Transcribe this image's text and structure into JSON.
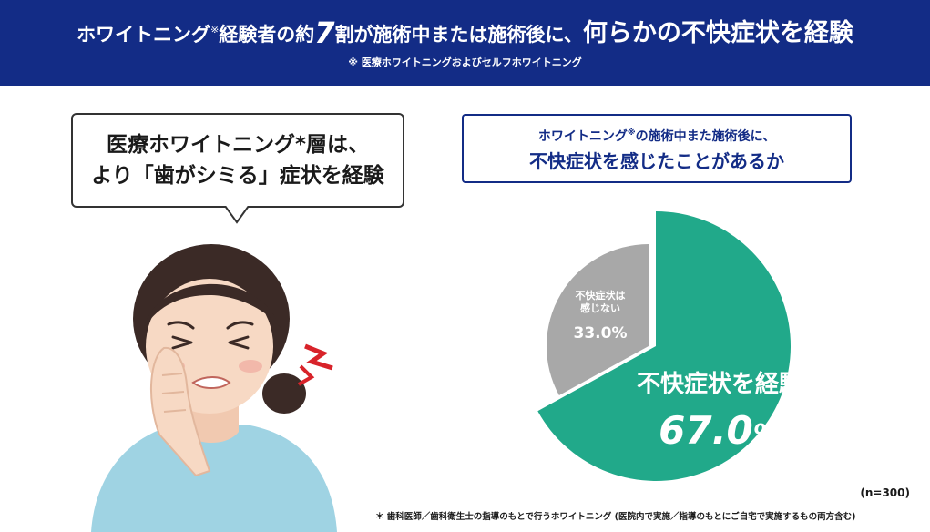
{
  "banner": {
    "title_part1": "ホワイトニング",
    "title_mark": "※",
    "title_part2": "経験者の約",
    "title_seven": "7",
    "title_part3": "割",
    "title_part4": "が施術中または施術後に、",
    "title_part5": "何らかの不快症状を経験",
    "note": "※ 医療ホワイトニングおよびセルフホワイトニング"
  },
  "bubble": {
    "line1": "医療ホワイトニング*層は、",
    "line2": "より「歯がシミる」症状を経験"
  },
  "question": {
    "line1_part1": "ホワイトニング",
    "line1_mark": "※",
    "line1_part2": "の施術中また施術後に、",
    "line2": "不快症状を感じたことがあるか"
  },
  "chart_data": {
    "type": "pie",
    "slices": [
      {
        "label": "不快症状を経験",
        "value": 67.0,
        "display": "67.0",
        "unit": "%",
        "color": "#21a98a"
      },
      {
        "label_line1": "不快症状は",
        "label_line2": "感じない",
        "value": 33.0,
        "display": "33.0%",
        "color": "#a8a8a8"
      }
    ],
    "n_label": "(n=300)"
  },
  "footnote": "＊ 歯科医師／歯科衛生士の指導のもとで行うホワイトニング (医院内で実施／指導のもとにご自宅で実施するもの両方含む)",
  "colors": {
    "banner": "#132c86",
    "green": "#21a98a",
    "gray": "#a8a8a8",
    "skin": "#f7d9c4",
    "hair": "#3b2a26",
    "shirt": "#9fd3e3",
    "pain": "#d8232a"
  }
}
